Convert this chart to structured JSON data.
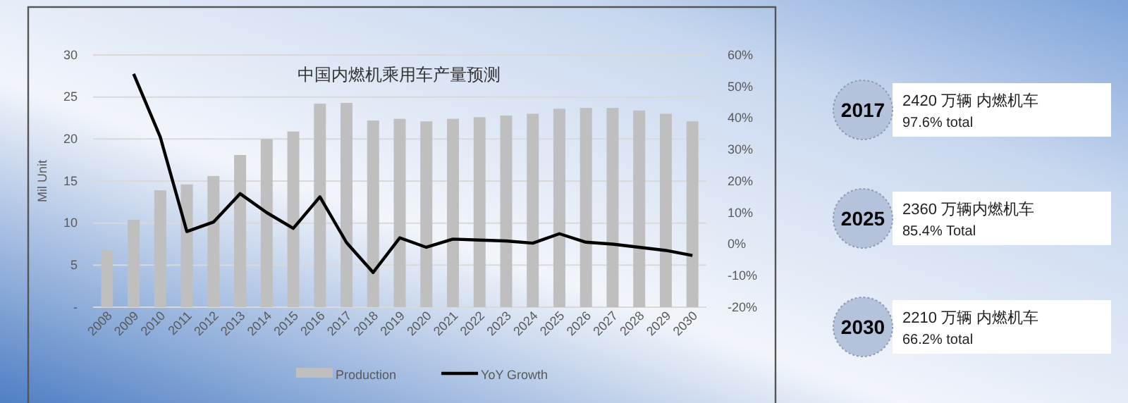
{
  "chart_data": {
    "type": "bar",
    "title": "中国内燃机乘用车产量预测",
    "ylabel": "Mil Unit",
    "categories": [
      "2008",
      "2009",
      "2010",
      "2011",
      "2012",
      "2013",
      "2014",
      "2015",
      "2016",
      "2017",
      "2018",
      "2019",
      "2020",
      "2021",
      "2022",
      "2023",
      "2024",
      "2025",
      "2026",
      "2027",
      "2028",
      "2029",
      "2030"
    ],
    "series": [
      {
        "name": "Production",
        "color": "#bfbfbf",
        "values": [
          6.8,
          10.4,
          13.9,
          14.6,
          15.6,
          18.1,
          20.0,
          20.9,
          24.2,
          24.3,
          22.2,
          22.4,
          22.1,
          22.4,
          22.6,
          22.8,
          23.0,
          23.6,
          23.7,
          23.7,
          23.4,
          23.0,
          22.1
        ]
      },
      {
        "name": "YoY Growth",
        "type": "line",
        "axis": "y2",
        "color": "#000000",
        "values": [
          null,
          54,
          34,
          4,
          7,
          16,
          10,
          5,
          15,
          0.5,
          -9,
          2,
          -1,
          1.6,
          1.3,
          1,
          0.3,
          3.3,
          0.6,
          0,
          -1,
          -2,
          -3.6
        ]
      }
    ],
    "ylim": [
      0,
      30
    ],
    "yticks": [
      {
        "value": 0,
        "label": "-"
      },
      5,
      10,
      15,
      20,
      25,
      30
    ],
    "y2lim": [
      -20,
      60
    ],
    "y2ticks": [
      {
        "value": -20,
        "label": "-20%"
      },
      {
        "value": -10,
        "label": "-10%"
      },
      {
        "value": 0,
        "label": "0%"
      },
      {
        "value": 10,
        "label": "10%"
      },
      {
        "value": 20,
        "label": "20%"
      },
      {
        "value": 30,
        "label": "30%"
      },
      {
        "value": 40,
        "label": "40%"
      },
      {
        "value": 50,
        "label": "50%"
      },
      {
        "value": 60,
        "label": "60%"
      }
    ],
    "grid": "y",
    "legend": "bottom",
    "marker": "none",
    "line_style": "solid",
    "annotations": [
      "2017",
      "2420 万辆 内燃机车",
      "97.6% total",
      "2025",
      "2360 万辆内燃机车",
      "85.4% Total",
      "2030",
      "2210 万辆 内燃机车",
      "66.2% total"
    ]
  }
}
